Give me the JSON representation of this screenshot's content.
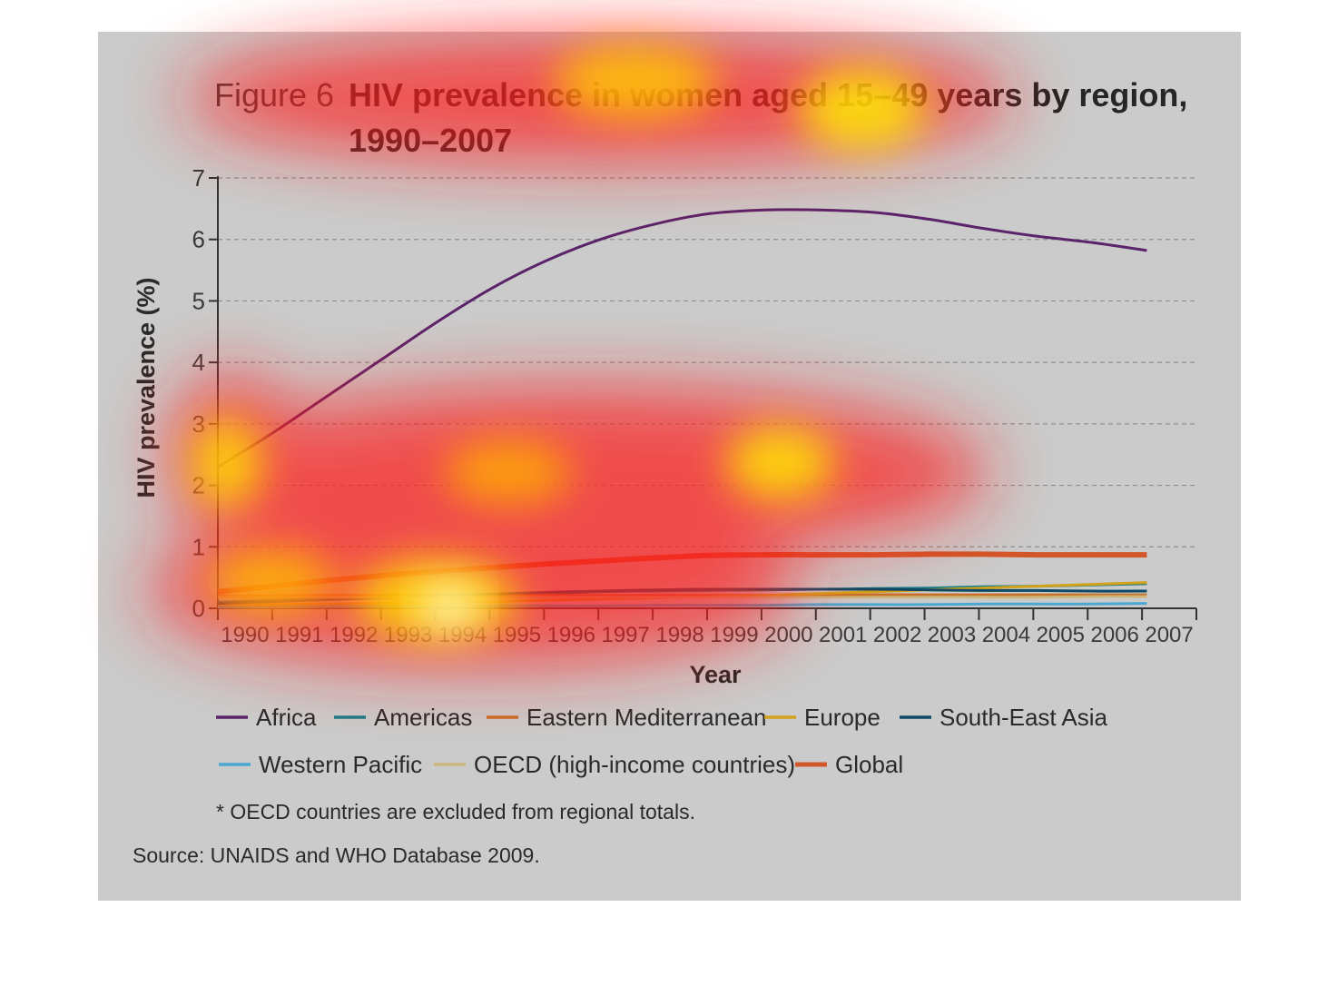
{
  "figure": {
    "label": "Figure 6",
    "title_line1": "HIV prevalence in women aged 15–49 years by region,",
    "title_line2": "1990–2007",
    "footnote": "* OECD countries are excluded from regional totals.",
    "source": "Source: UNAIDS and WHO Database 2009."
  },
  "chart_data": {
    "type": "line",
    "title": "HIV prevalence in women aged 15–49 years by region, 1990–2007",
    "xlabel": "Year",
    "ylabel": "HIV prevalence (%)",
    "ylim": [
      0,
      7
    ],
    "yticks": [
      "0",
      "1",
      "2",
      "3",
      "4",
      "5",
      "6",
      "7"
    ],
    "x": [
      "1990",
      "1991",
      "1992",
      "1993",
      "1994",
      "1995",
      "1996",
      "1997",
      "1998",
      "1999",
      "2000",
      "2001",
      "2002",
      "2003",
      "2004",
      "2005",
      "2006",
      "2007"
    ],
    "grid": "horizontal dashed",
    "legend_position": "bottom",
    "series": [
      {
        "name": "Africa",
        "color": "#5b2369",
        "width": 3,
        "values": [
          2.3,
          2.85,
          3.45,
          4.05,
          4.65,
          5.2,
          5.65,
          6.0,
          6.25,
          6.42,
          6.48,
          6.48,
          6.44,
          6.33,
          6.18,
          6.05,
          5.95,
          5.82
        ]
      },
      {
        "name": "Americas",
        "color": "#1b7d86",
        "width": 3,
        "values": [
          0.1,
          0.13,
          0.16,
          0.19,
          0.21,
          0.22,
          0.24,
          0.27,
          0.28,
          0.29,
          0.3,
          0.31,
          0.32,
          0.33,
          0.35,
          0.36,
          0.38,
          0.4
        ]
      },
      {
        "name": "Eastern Mediterranean",
        "color": "#c9702a",
        "width": 3,
        "values": [
          0.2,
          0.2,
          0.21,
          0.21,
          0.21,
          0.21,
          0.21,
          0.21,
          0.21,
          0.21,
          0.21,
          0.21,
          0.22,
          0.22,
          0.22,
          0.22,
          0.22,
          0.22
        ]
      },
      {
        "name": "Europe",
        "color": "#d2a21b",
        "width": 3,
        "values": [
          0.05,
          0.06,
          0.07,
          0.08,
          0.09,
          0.11,
          0.13,
          0.15,
          0.17,
          0.19,
          0.21,
          0.24,
          0.27,
          0.3,
          0.33,
          0.36,
          0.39,
          0.42
        ]
      },
      {
        "name": "South-East Asia",
        "color": "#0d4a66",
        "width": 3,
        "values": [
          0.08,
          0.11,
          0.14,
          0.17,
          0.2,
          0.23,
          0.26,
          0.28,
          0.3,
          0.31,
          0.31,
          0.31,
          0.31,
          0.3,
          0.29,
          0.29,
          0.28,
          0.28
        ]
      },
      {
        "name": "Western Pacific",
        "color": "#4aa8d2",
        "width": 3,
        "values": [
          0.02,
          0.02,
          0.03,
          0.03,
          0.03,
          0.04,
          0.04,
          0.04,
          0.05,
          0.05,
          0.05,
          0.06,
          0.06,
          0.06,
          0.07,
          0.07,
          0.07,
          0.08
        ]
      },
      {
        "name": "OECD (high-income countries)",
        "color": "#c9b87a",
        "width": 3,
        "values": [
          0.18,
          0.18,
          0.18,
          0.18,
          0.18,
          0.18,
          0.18,
          0.18,
          0.18,
          0.18,
          0.18,
          0.18,
          0.18,
          0.18,
          0.18,
          0.18,
          0.19,
          0.19
        ]
      },
      {
        "name": "Global",
        "color": "#d2572a",
        "width": 6,
        "values": [
          0.27,
          0.36,
          0.45,
          0.53,
          0.6,
          0.66,
          0.72,
          0.77,
          0.82,
          0.86,
          0.87,
          0.87,
          0.87,
          0.88,
          0.88,
          0.87,
          0.87,
          0.87
        ]
      }
    ]
  }
}
